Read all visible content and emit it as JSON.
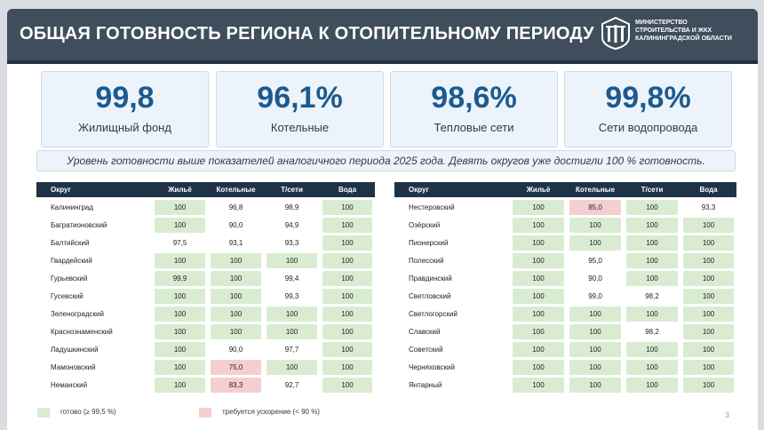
{
  "header": {
    "title": "ОБЩАЯ ГОТОВНОСТЬ РЕГИОНА К ОТОПИТЕЛЬНОМУ ПЕРИОДУ",
    "ministry_lines": [
      "МИНИСТЕРСТВО",
      "СТРОИТЕЛЬСТВА И ЖКХ",
      "КАЛИНИНГРАДСКОЙ ОБЛАСТИ"
    ]
  },
  "kpis": [
    {
      "value": "99,8",
      "label": "Жилищный фонд"
    },
    {
      "value": "96,1%",
      "label": "Котельные"
    },
    {
      "value": "98,6%",
      "label": "Тепловые сети"
    },
    {
      "value": "99,8%",
      "label": "Сети водопровода"
    }
  ],
  "summary": "Уровень готовности выше показателей аналогичного периода 2025 года. Девять округов уже достигли 100 % готовность.",
  "columns": [
    "Округ",
    "Жильё",
    "Котельные",
    "Т/сети",
    "Вода"
  ],
  "left_rows": [
    {
      "name": "Калининград",
      "values": [
        "100",
        "96,8",
        "98,9",
        "100"
      ],
      "status": [
        "g",
        "n",
        "n",
        "g"
      ]
    },
    {
      "name": "Багратионовский",
      "values": [
        "100",
        "90,0",
        "94,9",
        "100"
      ],
      "status": [
        "g",
        "n",
        "n",
        "g"
      ]
    },
    {
      "name": "Балтийский",
      "values": [
        "97,5",
        "93,1",
        "93,3",
        "100"
      ],
      "status": [
        "n",
        "n",
        "n",
        "g"
      ]
    },
    {
      "name": "Гвардейский",
      "values": [
        "100",
        "100",
        "100",
        "100"
      ],
      "status": [
        "g",
        "g",
        "g",
        "g"
      ]
    },
    {
      "name": "Гурьевский",
      "values": [
        "99,9",
        "100",
        "99,4",
        "100"
      ],
      "status": [
        "g",
        "g",
        "n",
        "g"
      ]
    },
    {
      "name": "Гусевский",
      "values": [
        "100",
        "100",
        "99,3",
        "100"
      ],
      "status": [
        "g",
        "g",
        "n",
        "g"
      ]
    },
    {
      "name": "Зеленоградский",
      "values": [
        "100",
        "100",
        "100",
        "100"
      ],
      "status": [
        "g",
        "g",
        "g",
        "g"
      ]
    },
    {
      "name": "Краснознаменский",
      "values": [
        "100",
        "100",
        "100",
        "100"
      ],
      "status": [
        "g",
        "g",
        "g",
        "g"
      ]
    },
    {
      "name": "Ладушкинский",
      "values": [
        "100",
        "90,0",
        "97,7",
        "100"
      ],
      "status": [
        "g",
        "n",
        "n",
        "g"
      ]
    },
    {
      "name": "Мамоновский",
      "values": [
        "100",
        "75,0",
        "100",
        "100"
      ],
      "status": [
        "g",
        "r",
        "g",
        "g"
      ]
    },
    {
      "name": "Неманский",
      "values": [
        "100",
        "83,3",
        "92,7",
        "100"
      ],
      "status": [
        "g",
        "r",
        "n",
        "g"
      ]
    }
  ],
  "right_rows": [
    {
      "name": "Нестеровский",
      "values": [
        "100",
        "85,0",
        "100",
        "93,3"
      ],
      "status": [
        "g",
        "r",
        "g",
        "n"
      ]
    },
    {
      "name": "Озёрский",
      "values": [
        "100",
        "100",
        "100",
        "100"
      ],
      "status": [
        "g",
        "g",
        "g",
        "g"
      ]
    },
    {
      "name": "Пионерский",
      "values": [
        "100",
        "100",
        "100",
        "100"
      ],
      "status": [
        "g",
        "g",
        "g",
        "g"
      ]
    },
    {
      "name": "Полесский",
      "values": [
        "100",
        "95,0",
        "100",
        "100"
      ],
      "status": [
        "g",
        "n",
        "g",
        "g"
      ]
    },
    {
      "name": "Правдинский",
      "values": [
        "100",
        "90,0",
        "100",
        "100"
      ],
      "status": [
        "g",
        "n",
        "g",
        "g"
      ]
    },
    {
      "name": "Светловский",
      "values": [
        "100",
        "99,0",
        "98,2",
        "100"
      ],
      "status": [
        "g",
        "n",
        "n",
        "g"
      ]
    },
    {
      "name": "Светлогорский",
      "values": [
        "100",
        "100",
        "100",
        "100"
      ],
      "status": [
        "g",
        "g",
        "g",
        "g"
      ]
    },
    {
      "name": "Славский",
      "values": [
        "100",
        "100",
        "98,2",
        "100"
      ],
      "status": [
        "g",
        "g",
        "n",
        "g"
      ]
    },
    {
      "name": "Советский",
      "values": [
        "100",
        "100",
        "100",
        "100"
      ],
      "status": [
        "g",
        "g",
        "g",
        "g"
      ]
    },
    {
      "name": "Черняховский",
      "values": [
        "100",
        "100",
        "100",
        "100"
      ],
      "status": [
        "g",
        "g",
        "g",
        "g"
      ]
    },
    {
      "name": "Янтарный",
      "values": [
        "100",
        "100",
        "100",
        "100"
      ],
      "status": [
        "g",
        "g",
        "g",
        "g"
      ]
    }
  ],
  "legend": {
    "ready": "готово (≥ 99,5 %)",
    "ready_color": "#d9ecd2",
    "speedup": "требуется ускорение (< 90 %)",
    "speedup_color": "#f5cfd0"
  },
  "page_number": "3"
}
